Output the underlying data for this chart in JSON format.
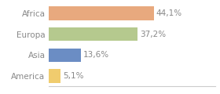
{
  "categories": [
    "Africa",
    "Europa",
    "Asia",
    "America"
  ],
  "values": [
    44.1,
    37.2,
    13.6,
    5.1
  ],
  "bar_colors": [
    "#e8a97e",
    "#b5c98e",
    "#6b8dc4",
    "#f0cc6e"
  ],
  "labels": [
    "44,1%",
    "37,2%",
    "13,6%",
    "5,1%"
  ],
  "background_color": "#ffffff",
  "text_color": "#888888",
  "xlim": [
    0,
    70
  ],
  "bar_height": 0.65,
  "label_fontsize": 7.5,
  "tick_fontsize": 7.5
}
